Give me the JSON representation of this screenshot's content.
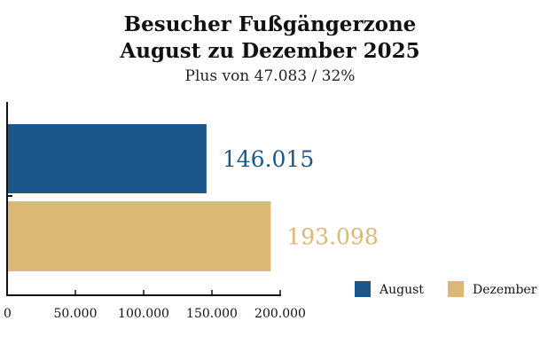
{
  "chart_data": {
    "type": "bar",
    "orientation": "horizontal",
    "title_lines": [
      "Besucher Fußgängerzone",
      "August zu Dezember 2025"
    ],
    "subtitle": "Plus von 47.083 / 32%",
    "categories": [
      "August",
      "Dezember"
    ],
    "values": [
      146015,
      193098
    ],
    "data_labels": [
      "146.015",
      "193.098"
    ],
    "colors": [
      "#1b578b",
      "#ddb874"
    ],
    "xlim": [
      0,
      200000
    ],
    "x_ticks": [
      0,
      50000,
      100000,
      150000,
      200000
    ],
    "x_tick_labels": [
      "0",
      "50.000",
      "100.000",
      "150.000",
      "200.000"
    ],
    "grid": false,
    "legend": {
      "position": "bottom-right",
      "entries": [
        {
          "label": "August",
          "color": "#1b578b"
        },
        {
          "label": "Dezember",
          "color": "#ddb874"
        }
      ]
    }
  }
}
